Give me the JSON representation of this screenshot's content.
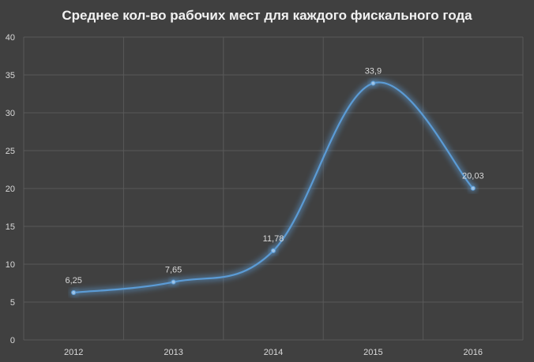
{
  "chart_data": {
    "type": "line",
    "title": "Среднее кол-во рабочих мест для каждого фискального года",
    "categories": [
      "2012",
      "2013",
      "2014",
      "2015",
      "2016"
    ],
    "series": [
      {
        "values": [
          6.25,
          7.65,
          11.78,
          33.9,
          20.03
        ],
        "labels": [
          "6,25",
          "7,65",
          "11,78",
          "33,9",
          "20,03"
        ],
        "color": "#5b9bd5"
      }
    ],
    "y_ticks": [
      "0",
      "5",
      "10",
      "15",
      "20",
      "25",
      "30",
      "35",
      "40"
    ],
    "ylim": [
      0,
      40
    ],
    "grid": true,
    "background": "#404040",
    "grid_color": "#595959"
  }
}
